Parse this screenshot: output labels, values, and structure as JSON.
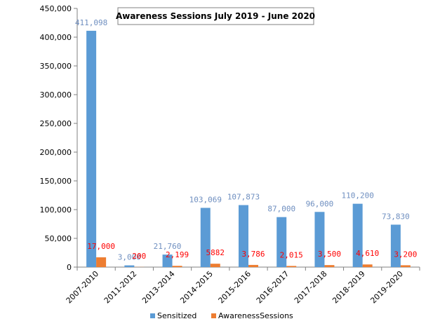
{
  "colors": {
    "sensitized": "#5b9bd5",
    "awareness": "#ed7d31",
    "sensitized_label": "#6f8fc0",
    "awareness_label": "#ff0000",
    "axis": "#808080"
  },
  "chart_data": {
    "type": "bar",
    "title": "Awareness Sessions July 2019 - June 2020",
    "xlabel": "",
    "ylabel": "",
    "ylim": [
      0,
      450000
    ],
    "yticks": [
      "0",
      "50,000",
      "100,000",
      "150,000",
      "200,000",
      "250,000",
      "300,000",
      "350,000",
      "400,000",
      "450,000"
    ],
    "categories": [
      "2007-2010",
      "2011-2012",
      "2013-2014",
      "2014-2015",
      "2015-2016",
      "2016-2017",
      "2017-2018",
      "2018-2019",
      "2019-2020"
    ],
    "series": [
      {
        "name": "Sensitized",
        "values": [
          411098,
          3000,
          21760,
          103069,
          107873,
          87000,
          96000,
          110200,
          73830
        ],
        "labels": [
          "411,098",
          "3,000",
          "21,760",
          "103,069",
          "107,873",
          "87,000",
          "96,000",
          "110,200",
          "73,830"
        ]
      },
      {
        "name": "AwarenessSessions",
        "values": [
          17000,
          200,
          2199,
          5882,
          3786,
          2015,
          3500,
          4610,
          3200
        ],
        "labels": [
          "17,000",
          "200",
          "2,199",
          "5882",
          "3,786",
          "2,015",
          "3,500",
          "4,610",
          "3,200"
        ]
      }
    ],
    "legend_position": "bottom",
    "grid": false
  }
}
